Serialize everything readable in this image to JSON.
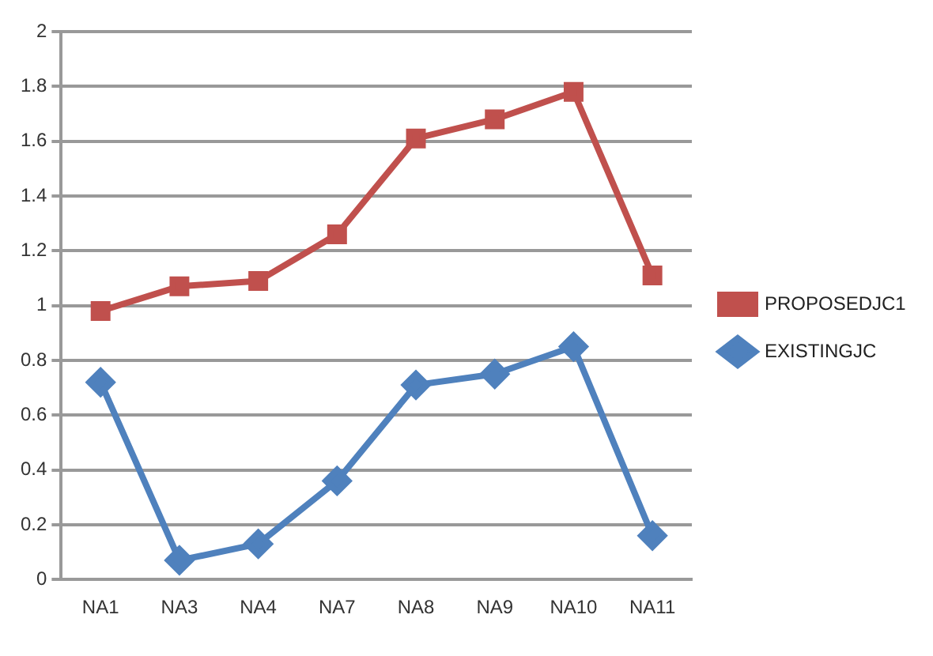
{
  "chart_data": {
    "type": "line",
    "categories": [
      "NA1",
      "NA3",
      "NA4",
      "NA7",
      "NA8",
      "NA9",
      "NA10",
      "NA11"
    ],
    "series": [
      {
        "name": "PROPOSEDJC1",
        "color": "#c0504d",
        "marker": "square",
        "values": [
          0.98,
          1.07,
          1.09,
          1.26,
          1.61,
          1.68,
          1.78,
          1.11
        ]
      },
      {
        "name": "EXISTINGJC",
        "color": "#4f81bd",
        "marker": "diamond",
        "values": [
          0.72,
          0.07,
          0.13,
          0.36,
          0.71,
          0.75,
          0.85,
          0.16
        ]
      }
    ],
    "ylim": [
      0,
      2
    ],
    "yticks": [
      0,
      0.2,
      0.4,
      0.6,
      0.8,
      1,
      1.2,
      1.4,
      1.6,
      1.8,
      2
    ],
    "grid": "y",
    "legend": "right",
    "line_style": "solid"
  }
}
